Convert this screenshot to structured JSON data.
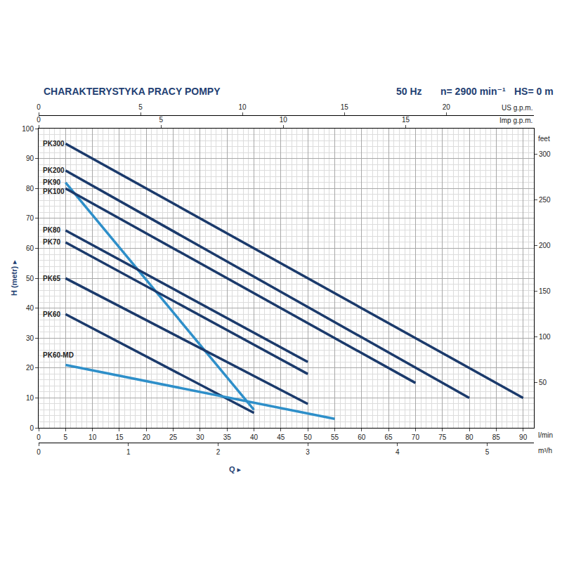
{
  "chart_data": {
    "type": "line",
    "title": "CHARAKTERYSTYKA PRACY POMPY",
    "annotations": [
      "50 Hz",
      "n= 2900 min⁻¹",
      "HS= 0 m"
    ],
    "xlabel": "Q ▸",
    "x_unit": "l/min",
    "ylabel": "H (metr) ▸",
    "y2label": "feet",
    "xlim": [
      0,
      92
    ],
    "xticks": [
      0,
      5,
      10,
      15,
      20,
      25,
      30,
      35,
      40,
      45,
      50,
      55,
      60,
      65,
      70,
      75,
      80,
      85,
      90
    ],
    "ylim": [
      0,
      100
    ],
    "yticks": [
      0,
      10,
      20,
      30,
      40,
      50,
      60,
      70,
      80,
      90,
      100
    ],
    "y2lim": [
      0,
      328
    ],
    "y2ticks": [
      50,
      100,
      150,
      200,
      250,
      300
    ],
    "secondary_x_axes": [
      {
        "label": "m³/h",
        "side": "bottom",
        "lim": [
          0,
          5.52
        ],
        "ticks": [
          0,
          1,
          2,
          3,
          4,
          5
        ]
      },
      {
        "label": "Imp g.p.m.",
        "side": "top",
        "lim": [
          0,
          20.24
        ],
        "ticks": [
          0,
          5,
          10,
          15
        ]
      },
      {
        "label": "US g.p.m.",
        "side": "top",
        "lim": [
          0,
          24.3
        ],
        "ticks": [
          0,
          5,
          10,
          15,
          20
        ]
      }
    ],
    "grid": true,
    "series": [
      {
        "name": "PK300",
        "color": "#1b3a6b",
        "x": [
          5,
          90
        ],
        "values": [
          95,
          10
        ]
      },
      {
        "name": "PK200",
        "color": "#1b3a6b",
        "x": [
          5,
          80
        ],
        "values": [
          86,
          10
        ]
      },
      {
        "name": "PK90",
        "color": "#2e8fc9",
        "x": [
          5,
          40
        ],
        "values": [
          82,
          6
        ]
      },
      {
        "name": "PK100",
        "color": "#1b3a6b",
        "x": [
          5,
          70
        ],
        "values": [
          80,
          15
        ]
      },
      {
        "name": "PK80",
        "color": "#1b3a6b",
        "x": [
          5,
          50
        ],
        "values": [
          66,
          22
        ]
      },
      {
        "name": "PK70",
        "color": "#1b3a6b",
        "x": [
          5,
          50
        ],
        "values": [
          62,
          18
        ]
      },
      {
        "name": "PK65",
        "color": "#1b3a6b",
        "x": [
          5,
          50
        ],
        "values": [
          50,
          8
        ]
      },
      {
        "name": "PK60",
        "color": "#1b3a6b",
        "x": [
          5,
          40
        ],
        "values": [
          38,
          5
        ]
      },
      {
        "name": "PK60-MD",
        "color": "#2e8fc9",
        "x": [
          5,
          55
        ],
        "values": [
          21,
          3
        ]
      }
    ]
  }
}
